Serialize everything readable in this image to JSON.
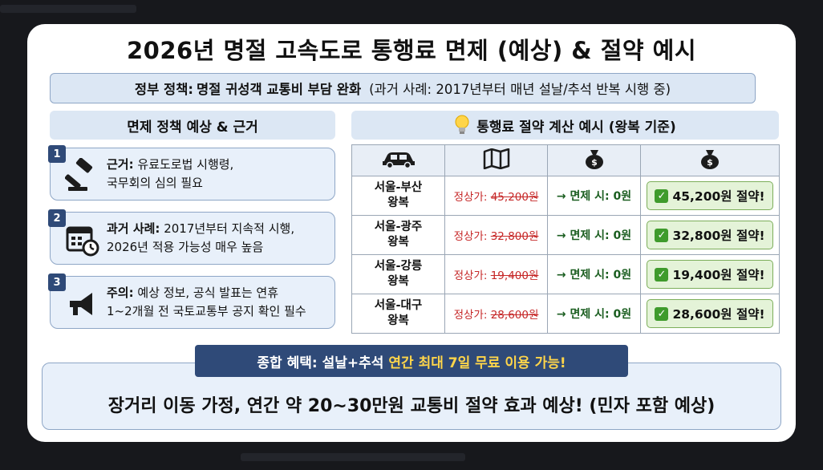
{
  "title": "2026년 명절 고속도로 통행료 면제 (예상) & 절약 예시",
  "policy": {
    "label": "정부 정책:",
    "headline": "명절 귀성객 교통비 부담 완화",
    "note": "(과거 사례: 2017년부터 매년 설날/추석 반복 시행 중)"
  },
  "left_header": "면제 정책 예상 & 근거",
  "right_header": "통행료 절약 계산 예시 (왕복 기준)",
  "basis": [
    {
      "num": "1",
      "label": "근거:",
      "text": "유료도로법 시행령,",
      "text2": "국무회의 심의 필요",
      "icon": "gavel-icon"
    },
    {
      "num": "2",
      "label": "과거 사례:",
      "text": "2017년부터 지속적 시행,",
      "text2": "2026년 적용 가능성 매우 높음",
      "icon": "calendar-icon"
    },
    {
      "num": "3",
      "label": "주의:",
      "text": "예상 정보, 공식 발표는 연휴",
      "text2": "1~2개월 전 국토교통부 공지 확인 필수",
      "icon": "megaphone-icon"
    }
  ],
  "table": {
    "header_icons": [
      "car-icon",
      "map-icon",
      "money-bag-icon",
      "money-bag-icon"
    ],
    "rows": [
      {
        "route1": "서울-부산",
        "route2": "왕복",
        "price_label": "정상가:",
        "price": "45,200원",
        "free": "→ 면제 시: 0원",
        "saving": "45,200원 절약!"
      },
      {
        "route1": "서울-광주",
        "route2": "왕복",
        "price_label": "정상가:",
        "price": "32,800원",
        "free": "→ 면제 시: 0원",
        "saving": "32,800원 절약!"
      },
      {
        "route1": "서울-강릉",
        "route2": "왕복",
        "price_label": "정상가:",
        "price": "19,400원",
        "free": "→ 면제 시: 0원",
        "saving": "19,400원 절약!"
      },
      {
        "route1": "서울-대구",
        "route2": "왕복",
        "price_label": "정상가:",
        "price": "28,600원",
        "free": "→ 면제 시: 0원",
        "saving": "28,600원 절약!"
      }
    ]
  },
  "benefit": {
    "label": "종합 혜택: 설날+추석",
    "highlight": "연간 최대 7일 무료 이용 가능!",
    "main": "장거리 이동 가정, 연간 약 20~30만원 교통비 절약 효과 예상! (민자 포함 예상)"
  },
  "colors": {
    "navy": "#2f4a78",
    "light_blue": "#dce7f4",
    "price_red": "#c62828",
    "free_green": "#1b5e20",
    "chip_green": "#e4f3d8"
  }
}
